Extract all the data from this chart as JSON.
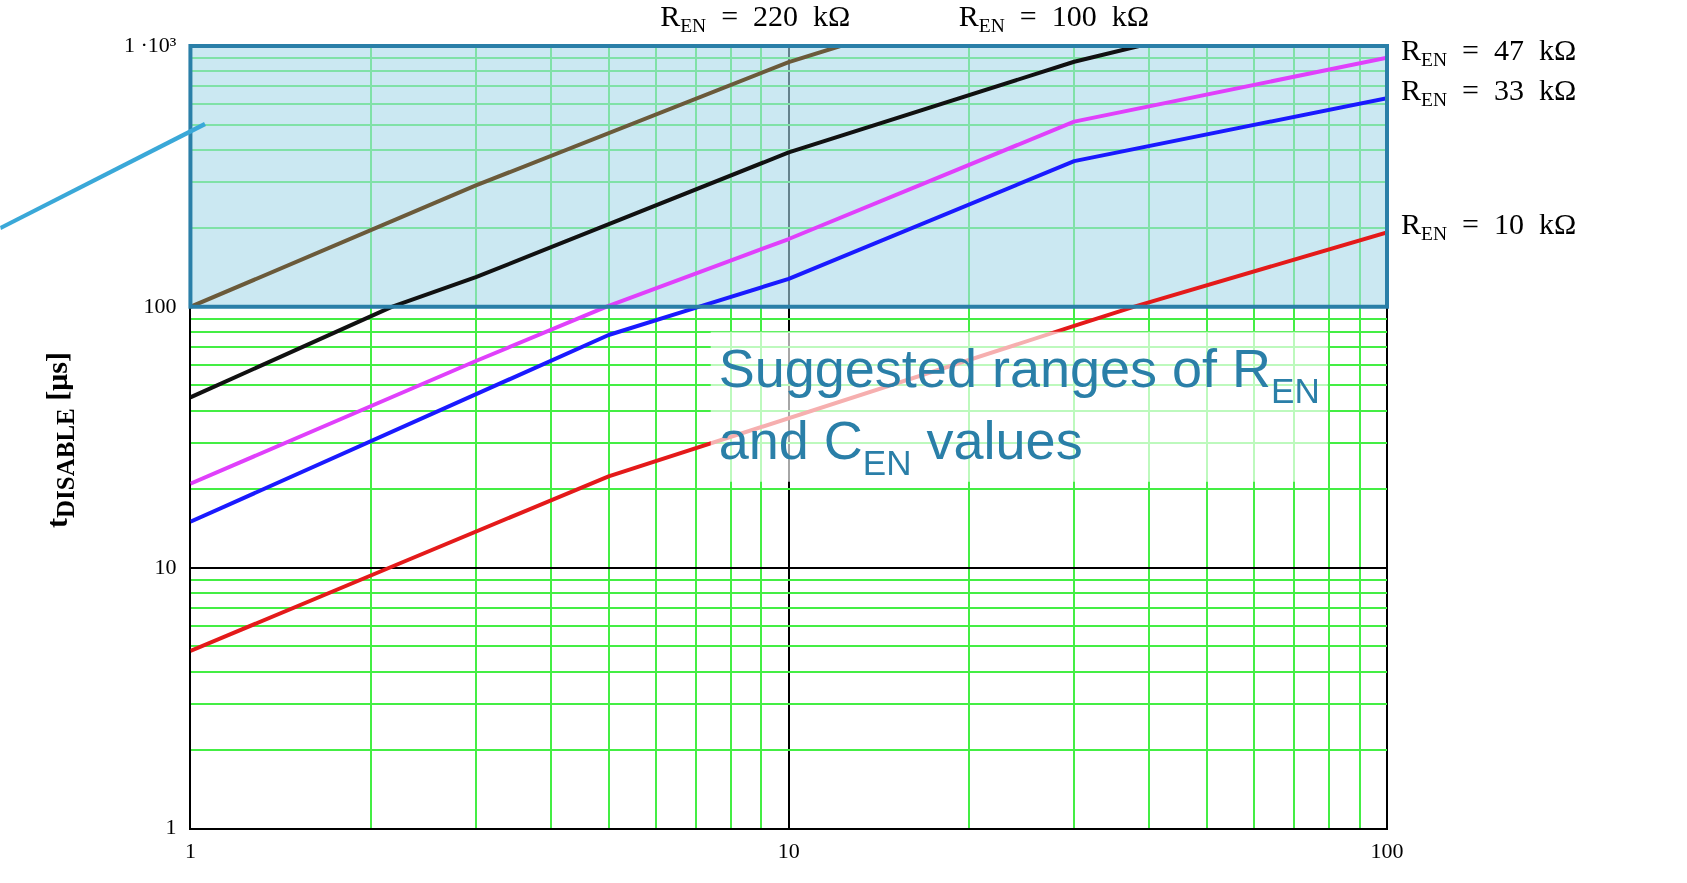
{
  "chart_data": {
    "type": "line",
    "ylabel": "t$_{DISABLE}$ [μs]",
    "log": "xy",
    "grid": true,
    "legend": false,
    "marker": "none",
    "line_style": "solid",
    "xlim": [
      1,
      100
    ],
    "ylim": [
      1,
      1000
    ],
    "xticks": [
      1,
      {
        "value": 2,
        "label": null
      },
      {
        "value": 3,
        "label": null
      },
      {
        "value": 4,
        "label": null
      },
      {
        "value": 5,
        "label": null
      },
      {
        "value": 6,
        "label": null
      },
      {
        "value": 7,
        "label": null
      },
      {
        "value": 8,
        "label": null
      },
      {
        "value": 9,
        "label": null
      },
      10,
      {
        "value": 20,
        "label": null
      },
      {
        "value": 30,
        "label": null
      },
      {
        "value": 40,
        "label": null
      },
      {
        "value": 50,
        "label": null
      },
      {
        "value": 60,
        "label": null
      },
      {
        "value": 70,
        "label": null
      },
      {
        "value": 80,
        "label": null
      },
      {
        "value": 90,
        "label": null
      },
      100
    ],
    "yticks": [
      1,
      {
        "value": 2,
        "label": null
      },
      {
        "value": 3,
        "label": null
      },
      {
        "value": 4,
        "label": null
      },
      {
        "value": 5,
        "label": null
      },
      {
        "value": 6,
        "label": null
      },
      {
        "value": 7,
        "label": null
      },
      {
        "value": 8,
        "label": null
      },
      {
        "value": 9,
        "label": null
      },
      10,
      {
        "value": 20,
        "label": null
      },
      {
        "value": 30,
        "label": null
      },
      {
        "value": 40,
        "label": null
      },
      {
        "value": 50,
        "label": null
      },
      {
        "value": 60,
        "label": null
      },
      {
        "value": 70,
        "label": null
      },
      {
        "value": 80,
        "label": null
      },
      {
        "value": 90,
        "label": null
      },
      100,
      {
        "value": 200,
        "label": null
      },
      {
        "value": 300,
        "label": null
      },
      {
        "value": 400,
        "label": null
      },
      {
        "value": 500,
        "label": null
      },
      {
        "value": 600,
        "label": null
      },
      {
        "value": 700,
        "label": null
      },
      {
        "value": 800,
        "label": null
      },
      {
        "value": 900,
        "label": null
      },
      {
        "value": 1000,
        "label": "1 ·10³"
      }
    ],
    "series": [
      {
        "name": "R$_{EN}$ = 220 kΩ",
        "color": "#6b5a3a",
        "x": [
          1,
          3,
          10,
          12.2
        ],
        "values": [
          100,
          292,
          868,
          1000
        ]
      },
      {
        "name": "R$_{EN}$ = 100 kΩ",
        "color": "#111111",
        "x": [
          1,
          2.17,
          3,
          10,
          30,
          38.5
        ],
        "values": [
          45,
          100,
          130,
          391,
          870,
          1000
        ]
      },
      {
        "name": "R$_{EN}$ = 47 kΩ",
        "color": "#e040fb",
        "x": [
          1,
          3,
          4.95,
          10,
          30,
          100
        ],
        "values": [
          21,
          62,
          100,
          182,
          513,
          902
        ]
      },
      {
        "name": "R$_{EN}$ = 33 kΩ",
        "color": "#1a1aff",
        "x": [
          1,
          5,
          7.07,
          10,
          30,
          100
        ],
        "values": [
          15,
          78,
          100,
          128,
          362,
          631
        ]
      },
      {
        "name": "R$_{EN}$ = 10 kΩ",
        "color": "#e41a1a",
        "x": [
          1,
          2.15,
          5,
          30,
          37.7,
          100
        ],
        "values": [
          4.8,
          10,
          22.4,
          84.5,
          100,
          193
        ]
      }
    ],
    "bands": [
      {
        "axis": "y",
        "from": 100,
        "to": 1000,
        "label": "Suggested ranges of R$_{EN}$ and C$_{EN}$ values",
        "color": "#a8d8ea"
      }
    ]
  }
}
